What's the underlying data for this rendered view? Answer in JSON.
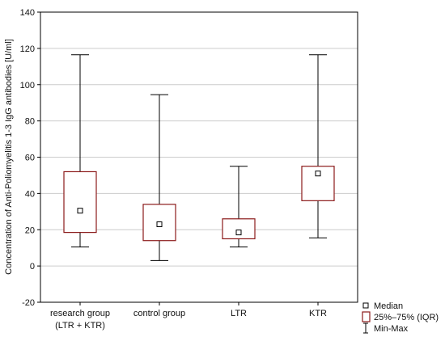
{
  "chart_data": {
    "type": "boxplot",
    "ylabel": "Concentration of Anti-Poliomyelitis 1-3 IgG antibodies [U/ml]",
    "ylim": [
      -20,
      140
    ],
    "yticks": [
      -20,
      0,
      20,
      40,
      60,
      80,
      100,
      120,
      140
    ],
    "grid": true,
    "categories": [
      {
        "label": "research group",
        "sublabel": "(LTR + KTR)"
      },
      {
        "label": "control group",
        "sublabel": ""
      },
      {
        "label": "LTR",
        "sublabel": ""
      },
      {
        "label": "KTR",
        "sublabel": ""
      }
    ],
    "boxes": [
      {
        "min": 10.5,
        "q1": 18.5,
        "median": 30.5,
        "q3": 52,
        "max": 116.5
      },
      {
        "min": 3,
        "q1": 14,
        "median": 23,
        "q3": 34,
        "max": 94.5
      },
      {
        "min": 10.5,
        "q1": 15,
        "median": 18.5,
        "q3": 26,
        "max": 55
      },
      {
        "min": 15.5,
        "q1": 36,
        "median": 51,
        "q3": 55,
        "max": 116.5
      }
    ],
    "legend": {
      "position": "bottom-right",
      "items": [
        {
          "symbol": "median-marker",
          "label": "Median"
        },
        {
          "symbol": "iqr-box",
          "label": "25%–75% (IQR)"
        },
        {
          "symbol": "whisker",
          "label": "Min-Max"
        }
      ]
    },
    "colors": {
      "box": "#8b1a1a",
      "whisker": "#000000",
      "grid": "#cccccc"
    }
  }
}
